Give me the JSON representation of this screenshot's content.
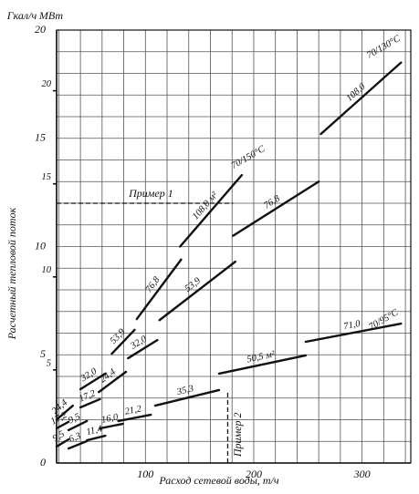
{
  "chart_data": {
    "type": "line",
    "y_unit": "Гкал/ч",
    "y2_unit": "МВт",
    "y_axis_label": "Расчетный тепловой поток",
    "x_axis_label": "Расход сетевой воды, т/ч",
    "xlim": [
      18,
      345
    ],
    "xticks": [
      100,
      200,
      300
    ],
    "ylim": [
      0,
      20
    ],
    "yticks": [
      0,
      5,
      10,
      15,
      20
    ],
    "y2lim": [
      0,
      23.26
    ],
    "y2ticks": [
      5,
      10,
      15,
      20
    ],
    "grid": true,
    "x_minor_ticks": [
      20,
      40,
      60,
      80,
      120,
      140,
      160,
      180,
      220,
      240,
      260,
      280,
      320,
      340
    ],
    "y_minor_ticks": [
      1,
      2,
      3,
      4,
      6,
      7,
      8,
      9,
      11,
      12,
      13,
      14,
      16,
      17,
      18,
      19
    ],
    "color": "#111111",
    "series": [
      {
        "name": "108,0",
        "x": [
          262,
          336
        ],
        "values": [
          15.2,
          18.5
        ]
      },
      {
        "name": "76,8",
        "x": [
          181,
          260
        ],
        "values": [
          10.5,
          13.0
        ]
      },
      {
        "name": "108,0 м²",
        "x": [
          132,
          189
        ],
        "values": [
          10.0,
          13.3
        ]
      },
      {
        "name": "76,8",
        "x": [
          92,
          133
        ],
        "values": [
          6.65,
          9.4
        ]
      },
      {
        "name": "53,9",
        "x": [
          113,
          183
        ],
        "values": [
          6.6,
          9.3
        ]
      },
      {
        "name": "53,9",
        "x": [
          69,
          90
        ],
        "values": [
          5.05,
          6.15
        ]
      },
      {
        "name": "32,0",
        "x": [
          84,
          111
        ],
        "values": [
          4.84,
          5.68
        ]
      },
      {
        "name": "32,0",
        "x": [
          40,
          63
        ],
        "values": [
          3.41,
          4.13
        ]
      },
      {
        "name": "24,4",
        "x": [
          57,
          82
        ],
        "values": [
          3.28,
          4.21
        ]
      },
      {
        "name": "24,4",
        "x": [
          18,
          33
        ],
        "values": [
          2.0,
          2.65
        ]
      },
      {
        "name": "17,2",
        "x": [
          40,
          58
        ],
        "values": [
          2.57,
          2.95
        ]
      },
      {
        "name": "17,2",
        "x": [
          18,
          29
        ],
        "values": [
          1.6,
          1.9
        ]
      },
      {
        "name": "9,5",
        "x": [
          29,
          46
        ],
        "values": [
          1.52,
          1.94
        ]
      },
      {
        "name": "9,5",
        "x": [
          18,
          29
        ],
        "values": [
          0.76,
          1.09
        ]
      },
      {
        "name": "6,3",
        "x": [
          29,
          46
        ],
        "values": [
          0.67,
          1.01
        ]
      },
      {
        "name": "11,4",
        "x": [
          46,
          63
        ],
        "values": [
          1.05,
          1.26
        ]
      },
      {
        "name": "16,0",
        "x": [
          58,
          79
        ],
        "values": [
          1.6,
          1.81
        ]
      },
      {
        "name": "21,2",
        "x": [
          75,
          105
        ],
        "values": [
          1.94,
          2.23
        ]
      },
      {
        "name": "35,3",
        "x": [
          109,
          168
        ],
        "values": [
          2.65,
          3.37
        ]
      },
      {
        "name": "50,5 м²",
        "x": [
          168,
          248
        ],
        "values": [
          4.13,
          4.97
        ]
      },
      {
        "name": "71,0",
        "x": [
          248,
          336
        ],
        "values": [
          5.6,
          6.44
        ]
      }
    ],
    "annotations": [
      {
        "text": "70/130°C",
        "x": 320,
        "y": 19.2
      },
      {
        "text": "70/150°C",
        "x": 195,
        "y": 14.1
      },
      {
        "text": "70/95°C",
        "x": 320,
        "y": 6.6
      }
    ],
    "example_1": {
      "label": "Пример 1",
      "y": 12,
      "x": 181
    },
    "example_2": {
      "label": "Пример 2",
      "x": 176,
      "y": 3.3
    }
  }
}
